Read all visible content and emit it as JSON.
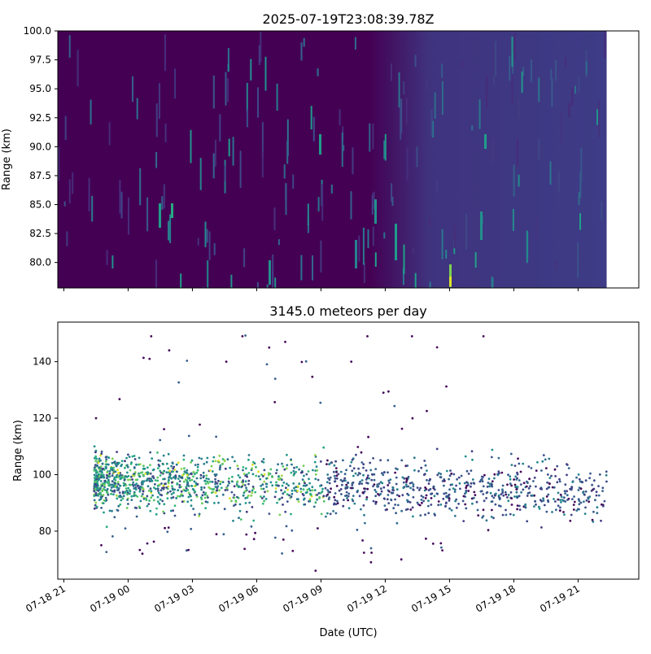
{
  "chart_data": [
    {
      "type": "heatmap",
      "title": "2025-07-19T23:08:39.78Z",
      "xlabel": "",
      "ylabel": "Range (km)",
      "xlim": [
        "2025-07-18 20:43",
        "2025-07-19 23:50"
      ],
      "ylim": [
        77.8,
        100.0
      ],
      "yticks": [
        100.0,
        97.5,
        95.0,
        92.5,
        90.0,
        87.5,
        85.0,
        82.5,
        80.0
      ],
      "ytick_labels": [
        "100.0",
        "97.5",
        "95.0",
        "92.5",
        "90.0",
        "87.5",
        "85.0",
        "82.5",
        "80.0"
      ],
      "data_x_range": [
        "2025-07-18 20:43",
        "2025-07-19 22:20"
      ],
      "colormap": "viridis",
      "background_left": "#440154",
      "background_right": "#3e3c86",
      "grid": false,
      "legend": "none"
    },
    {
      "type": "scatter",
      "title": "3145.0 meteors per day",
      "xlabel": "Date (UTC)",
      "ylabel": "Range (km)",
      "xlim": [
        "2025-07-18 20:43",
        "2025-07-19 23:50"
      ],
      "ylim": [
        63,
        154
      ],
      "yticks": [
        80,
        100,
        120,
        140
      ],
      "ytick_labels": [
        "80",
        "100",
        "120",
        "140"
      ],
      "xticks": [
        "2025-07-18 21:00",
        "2025-07-19 00:00",
        "2025-07-19 03:00",
        "2025-07-19 06:00",
        "2025-07-19 09:00",
        "2025-07-19 12:00",
        "2025-07-19 15:00",
        "2025-07-19 18:00",
        "2025-07-19 21:00"
      ],
      "xtick_labels": [
        "07-18 21",
        "07-19 00",
        "07-19 03",
        "07-19 06",
        "07-19 09",
        "07-19 12",
        "07-19 15",
        "07-19 18",
        "07-19 21"
      ],
      "colormap": "viridis",
      "grid": false,
      "legend": "none",
      "points_sample": [
        {
          "x": "2025-07-18 22:30",
          "y": 120
        },
        {
          "x": "2025-07-18 22:45",
          "y": 75
        },
        {
          "x": "2025-07-19 00:40",
          "y": 72
        },
        {
          "x": "2025-07-19 01:00",
          "y": 141
        },
        {
          "x": "2025-07-19 01:55",
          "y": 144
        },
        {
          "x": "2025-07-19 04:35",
          "y": 140
        },
        {
          "x": "2025-07-19 05:20",
          "y": 149
        },
        {
          "x": "2025-07-19 06:35",
          "y": 145
        },
        {
          "x": "2025-07-19 07:20",
          "y": 147
        },
        {
          "x": "2025-07-19 07:15",
          "y": 77
        },
        {
          "x": "2025-07-19 08:45",
          "y": 66
        },
        {
          "x": "2025-07-19 10:25",
          "y": 140
        },
        {
          "x": "2025-07-19 11:10",
          "y": 149
        },
        {
          "x": "2025-07-19 11:55",
          "y": 129
        },
        {
          "x": "2025-07-19 11:20",
          "y": 69
        },
        {
          "x": "2025-07-19 12:45",
          "y": 70
        },
        {
          "x": "2025-07-19 13:15",
          "y": 149
        },
        {
          "x": "2025-07-19 16:35",
          "y": 149
        },
        {
          "x": "2025-07-19 21:40",
          "y": 84
        }
      ]
    }
  ]
}
